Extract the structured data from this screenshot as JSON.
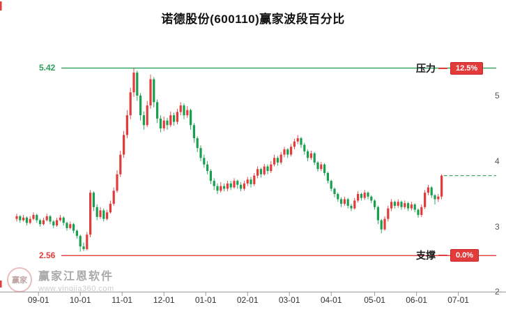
{
  "page": {
    "title": "诺德股份(600110)赢家波段百分比"
  },
  "chart_data": {
    "type": "candlestick",
    "title": "诺德股份(600110)赢家波段百分比",
    "x_labels": [
      "09-01",
      "10-01",
      "11-01",
      "12-01",
      "01-01",
      "02-01",
      "03-01",
      "04-01",
      "05-01",
      "06-01",
      "07-01"
    ],
    "y_ticks": [
      "5",
      "4",
      "3",
      "2"
    ],
    "ylim": [
      2,
      5.6
    ],
    "resistance": {
      "price": 5.42,
      "label": "5.42",
      "zone_label": "压力",
      "badge": "12.5%"
    },
    "support": {
      "price": 2.56,
      "label": "2.56",
      "zone_label": "支撑",
      "badge": "0.0%"
    },
    "current_price": 3.78,
    "colors": {
      "up": "#e23b3b",
      "down": "#1a9e50",
      "resistance": "#2ba05a",
      "support": "#e23b3b",
      "current": "#2ba05a",
      "axis": "#999999"
    },
    "candles": [
      [
        3.12,
        3.2,
        3.08,
        3.16
      ],
      [
        3.16,
        3.18,
        3.06,
        3.1
      ],
      [
        3.1,
        3.18,
        3.08,
        3.14
      ],
      [
        3.14,
        3.16,
        3.02,
        3.06
      ],
      [
        3.06,
        3.16,
        3.04,
        3.12
      ],
      [
        3.12,
        3.22,
        3.1,
        3.18
      ],
      [
        3.18,
        3.2,
        3.06,
        3.1
      ],
      [
        3.1,
        3.12,
        3.0,
        3.04
      ],
      [
        3.04,
        3.14,
        3.02,
        3.1
      ],
      [
        3.1,
        3.2,
        3.08,
        3.16
      ],
      [
        3.16,
        3.18,
        3.04,
        3.08
      ],
      [
        3.08,
        3.1,
        2.98,
        3.02
      ],
      [
        3.02,
        3.14,
        3.0,
        3.1
      ],
      [
        3.1,
        3.18,
        3.08,
        3.14
      ],
      [
        3.14,
        3.16,
        3.02,
        3.06
      ],
      [
        3.06,
        3.08,
        2.94,
        2.98
      ],
      [
        2.98,
        3.08,
        2.96,
        3.04
      ],
      [
        3.04,
        3.06,
        2.9,
        2.94
      ],
      [
        2.94,
        2.96,
        2.82,
        2.86
      ],
      [
        2.86,
        2.88,
        2.62,
        2.7
      ],
      [
        2.7,
        2.76,
        2.63,
        2.66
      ],
      [
        2.66,
        2.92,
        2.64,
        2.88
      ],
      [
        2.88,
        3.56,
        2.84,
        3.52
      ],
      [
        3.52,
        3.54,
        3.24,
        3.3
      ],
      [
        3.3,
        3.34,
        3.1,
        3.15
      ],
      [
        3.15,
        3.3,
        3.12,
        3.25
      ],
      [
        3.25,
        3.28,
        3.08,
        3.12
      ],
      [
        3.12,
        3.26,
        3.1,
        3.22
      ],
      [
        3.22,
        3.4,
        3.2,
        3.35
      ],
      [
        3.35,
        3.6,
        3.32,
        3.55
      ],
      [
        3.55,
        3.86,
        3.52,
        3.8
      ],
      [
        3.8,
        4.16,
        3.76,
        4.1
      ],
      [
        4.1,
        4.46,
        4.05,
        4.4
      ],
      [
        4.4,
        4.78,
        4.35,
        4.7
      ],
      [
        4.7,
        5.12,
        4.64,
        5.05
      ],
      [
        5.05,
        5.42,
        4.98,
        5.35
      ],
      [
        5.35,
        5.38,
        4.92,
        5.0
      ],
      [
        5.0,
        5.04,
        4.62,
        4.7
      ],
      [
        4.7,
        4.76,
        4.48,
        4.55
      ],
      [
        4.55,
        4.92,
        4.52,
        4.85
      ],
      [
        4.85,
        5.32,
        4.8,
        5.25
      ],
      [
        5.25,
        5.28,
        4.82,
        4.9
      ],
      [
        4.9,
        4.94,
        4.58,
        4.65
      ],
      [
        4.65,
        4.7,
        4.44,
        4.5
      ],
      [
        4.5,
        4.68,
        4.46,
        4.62
      ],
      [
        4.62,
        4.66,
        4.48,
        4.55
      ],
      [
        4.55,
        4.76,
        4.52,
        4.7
      ],
      [
        4.7,
        4.74,
        4.54,
        4.6
      ],
      [
        4.6,
        4.8,
        4.56,
        4.75
      ],
      [
        4.75,
        4.9,
        4.7,
        4.85
      ],
      [
        4.85,
        4.88,
        4.64,
        4.7
      ],
      [
        4.7,
        4.84,
        4.66,
        4.78
      ],
      [
        4.78,
        4.8,
        4.48,
        4.55
      ],
      [
        4.55,
        4.58,
        4.28,
        4.35
      ],
      [
        4.35,
        4.38,
        4.14,
        4.2
      ],
      [
        4.2,
        4.24,
        4.0,
        4.05
      ],
      [
        4.05,
        4.1,
        3.9,
        3.95
      ],
      [
        3.95,
        4.0,
        3.8,
        3.85
      ],
      [
        3.85,
        3.88,
        3.65,
        3.7
      ],
      [
        3.7,
        3.74,
        3.56,
        3.62
      ],
      [
        3.62,
        3.66,
        3.5,
        3.55
      ],
      [
        3.55,
        3.68,
        3.52,
        3.62
      ],
      [
        3.62,
        3.66,
        3.54,
        3.58
      ],
      [
        3.58,
        3.7,
        3.54,
        3.66
      ],
      [
        3.66,
        3.7,
        3.56,
        3.6
      ],
      [
        3.6,
        3.74,
        3.58,
        3.7
      ],
      [
        3.7,
        3.72,
        3.58,
        3.64
      ],
      [
        3.64,
        3.68,
        3.54,
        3.58
      ],
      [
        3.58,
        3.7,
        3.55,
        3.66
      ],
      [
        3.66,
        3.76,
        3.62,
        3.72
      ],
      [
        3.72,
        3.76,
        3.6,
        3.65
      ],
      [
        3.65,
        3.82,
        3.62,
        3.78
      ],
      [
        3.78,
        3.92,
        3.74,
        3.88
      ],
      [
        3.88,
        3.9,
        3.75,
        3.8
      ],
      [
        3.8,
        3.96,
        3.78,
        3.92
      ],
      [
        3.92,
        3.95,
        3.8,
        3.85
      ],
      [
        3.85,
        4.0,
        3.82,
        3.95
      ],
      [
        3.95,
        4.1,
        3.92,
        4.05
      ],
      [
        4.05,
        4.08,
        3.93,
        3.98
      ],
      [
        3.98,
        4.14,
        3.95,
        4.1
      ],
      [
        4.1,
        4.22,
        4.06,
        4.18
      ],
      [
        4.18,
        4.2,
        4.05,
        4.1
      ],
      [
        4.1,
        4.26,
        4.07,
        4.22
      ],
      [
        4.22,
        4.34,
        4.18,
        4.3
      ],
      [
        4.3,
        4.4,
        4.26,
        4.35
      ],
      [
        4.35,
        4.37,
        4.2,
        4.25
      ],
      [
        4.25,
        4.28,
        4.1,
        4.15
      ],
      [
        4.15,
        4.18,
        4.0,
        4.05
      ],
      [
        4.05,
        4.16,
        4.02,
        4.12
      ],
      [
        4.12,
        4.14,
        3.94,
        3.98
      ],
      [
        3.98,
        4.0,
        3.84,
        3.88
      ],
      [
        3.88,
        3.99,
        3.85,
        3.95
      ],
      [
        3.95,
        3.97,
        3.78,
        3.82
      ],
      [
        3.82,
        3.84,
        3.66,
        3.7
      ],
      [
        3.7,
        3.72,
        3.54,
        3.58
      ],
      [
        3.58,
        3.6,
        3.45,
        3.5
      ],
      [
        3.5,
        3.52,
        3.38,
        3.42
      ],
      [
        3.42,
        3.45,
        3.3,
        3.35
      ],
      [
        3.35,
        3.46,
        3.32,
        3.42
      ],
      [
        3.42,
        3.44,
        3.28,
        3.32
      ],
      [
        3.32,
        3.35,
        3.24,
        3.28
      ],
      [
        3.28,
        3.44,
        3.26,
        3.4
      ],
      [
        3.4,
        3.54,
        3.37,
        3.5
      ],
      [
        3.5,
        3.52,
        3.4,
        3.44
      ],
      [
        3.44,
        3.56,
        3.41,
        3.52
      ],
      [
        3.52,
        3.54,
        3.42,
        3.46
      ],
      [
        3.46,
        3.48,
        3.36,
        3.4
      ],
      [
        3.4,
        3.42,
        3.26,
        3.3
      ],
      [
        3.3,
        3.32,
        3.04,
        3.1
      ],
      [
        3.1,
        3.12,
        2.9,
        2.96
      ],
      [
        2.96,
        3.16,
        2.94,
        3.12
      ],
      [
        3.12,
        3.32,
        3.08,
        3.28
      ],
      [
        3.28,
        3.42,
        3.24,
        3.38
      ],
      [
        3.38,
        3.4,
        3.28,
        3.32
      ],
      [
        3.32,
        3.42,
        3.29,
        3.38
      ],
      [
        3.38,
        3.4,
        3.26,
        3.3
      ],
      [
        3.3,
        3.4,
        3.27,
        3.36
      ],
      [
        3.36,
        3.38,
        3.24,
        3.28
      ],
      [
        3.28,
        3.38,
        3.25,
        3.34
      ],
      [
        3.34,
        3.36,
        3.22,
        3.26
      ],
      [
        3.26,
        3.28,
        3.14,
        3.18
      ],
      [
        3.18,
        3.34,
        3.15,
        3.3
      ],
      [
        3.3,
        3.56,
        3.27,
        3.52
      ],
      [
        3.52,
        3.64,
        3.48,
        3.6
      ],
      [
        3.6,
        3.62,
        3.44,
        3.48
      ],
      [
        3.48,
        3.5,
        3.34,
        3.42
      ],
      [
        3.42,
        3.5,
        3.38,
        3.46
      ],
      [
        3.46,
        3.8,
        3.42,
        3.78
      ]
    ]
  },
  "watermark": {
    "brand": "赢家江恩软件",
    "site": "www.yingjia360.com",
    "logo": "赢家"
  }
}
